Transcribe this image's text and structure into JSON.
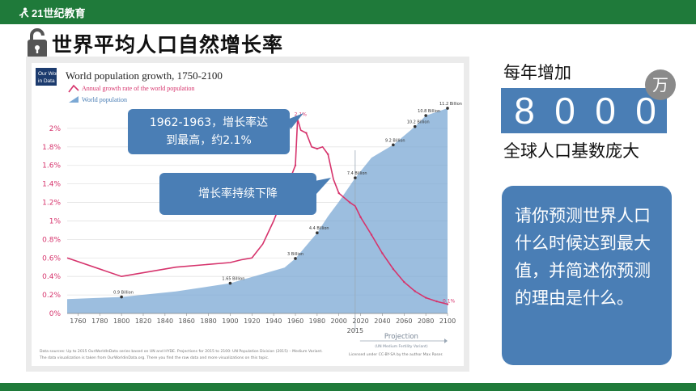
{
  "header": {
    "logo_text": "21世纪教育",
    "title": "世界平均人口自然增长率"
  },
  "chart": {
    "brand_line1": "Our World",
    "brand_line2": "in Data",
    "title": "World population growth, 1750-2100",
    "legend_growth": "Annual growth rate of the world population",
    "legend_population": "World population",
    "y_ticks": [
      "2%",
      "1.8%",
      "1.6%",
      "1.4%",
      "1.2%",
      "1%",
      "0.8%",
      "0.6%",
      "0.4%",
      "0.2%",
      "0%"
    ],
    "x_ticks": [
      "1760",
      "1780",
      "1800",
      "1820",
      "1840",
      "1860",
      "1880",
      "1900",
      "1920",
      "1940",
      "1960",
      "1980",
      "2000",
      "2020",
      "2040",
      "2060",
      "2080",
      "2100"
    ],
    "x_marker": "2015",
    "projection_label": "Projection",
    "projection_sub": "(UN Medium Fertility Variant)",
    "source_line1": "Data sources: Up to 2015 OurWorldInData series based on UN and HYDE. Projections for 2015 to 2100: UN Population Division (2015) – Medium Variant.",
    "source_line2": "The data visualization is taken from OurWorldinData.org. There you find the raw data and more visualizations on this topic.",
    "license": "Licensed under CC-BY-SA by the author Max Roser.",
    "peak_label": "2.1%",
    "end_label": "0.1%",
    "pop_labels": [
      "0.9 Billion",
      "1.65 Billion",
      "3 Billion",
      "4.4 Billion",
      "7.4 Billion",
      "9.2 Billion",
      "10.2 Billion",
      "10.8 Billion",
      "11.2 Billion"
    ]
  },
  "chart_data": {
    "type": "area",
    "title": "World population growth, 1750-2100",
    "x_range": [
      1750,
      2100
    ],
    "ylim": [
      0,
      2.2
    ],
    "y_unit": "%",
    "series": [
      {
        "name": "Annual growth rate of the world population",
        "x": [
          1750,
          1800,
          1850,
          1900,
          1910,
          1920,
          1930,
          1940,
          1950,
          1960,
          1962,
          1965,
          1970,
          1975,
          1980,
          1985,
          1990,
          1995,
          2000,
          2005,
          2010,
          2015,
          2020,
          2030,
          2040,
          2050,
          2060,
          2070,
          2080,
          2090,
          2100
        ],
        "y": [
          0.6,
          0.4,
          0.5,
          0.55,
          0.58,
          0.6,
          0.75,
          1.0,
          1.3,
          1.6,
          2.1,
          1.98,
          1.95,
          1.8,
          1.78,
          1.8,
          1.72,
          1.45,
          1.3,
          1.25,
          1.2,
          1.16,
          1.04,
          0.85,
          0.65,
          0.48,
          0.34,
          0.24,
          0.17,
          0.13,
          0.1
        ]
      },
      {
        "name": "World population",
        "x": [
          1750,
          1800,
          1850,
          1900,
          1950,
          1960,
          1970,
          1980,
          1990,
          2000,
          2015,
          2030,
          2050,
          2070,
          2080,
          2100
        ],
        "y_billion": [
          0.78,
          0.9,
          1.2,
          1.65,
          2.5,
          3.0,
          3.7,
          4.4,
          5.3,
          6.1,
          7.4,
          8.5,
          9.2,
          10.2,
          10.8,
          11.2
        ]
      }
    ]
  },
  "callouts": {
    "peak_line1": "1962-1963，增长率达",
    "peak_line2": "到最高，约2.1%",
    "decline": "增长率持续下降"
  },
  "panel": {
    "annual_label": "每年增加",
    "digits": [
      "8",
      "0",
      "0",
      "0"
    ],
    "unit": "万",
    "base_label": "全球人口基数庞大"
  },
  "question": {
    "text": "请你预测世界人口什么时候达到最大值，并简述你预测的理由是什么。"
  },
  "colors": {
    "accent_blue": "#4a7eb5",
    "bar_green": "#1f7a3a",
    "growth_line": "#d6336c",
    "pop_area": "#7ba8d4"
  }
}
